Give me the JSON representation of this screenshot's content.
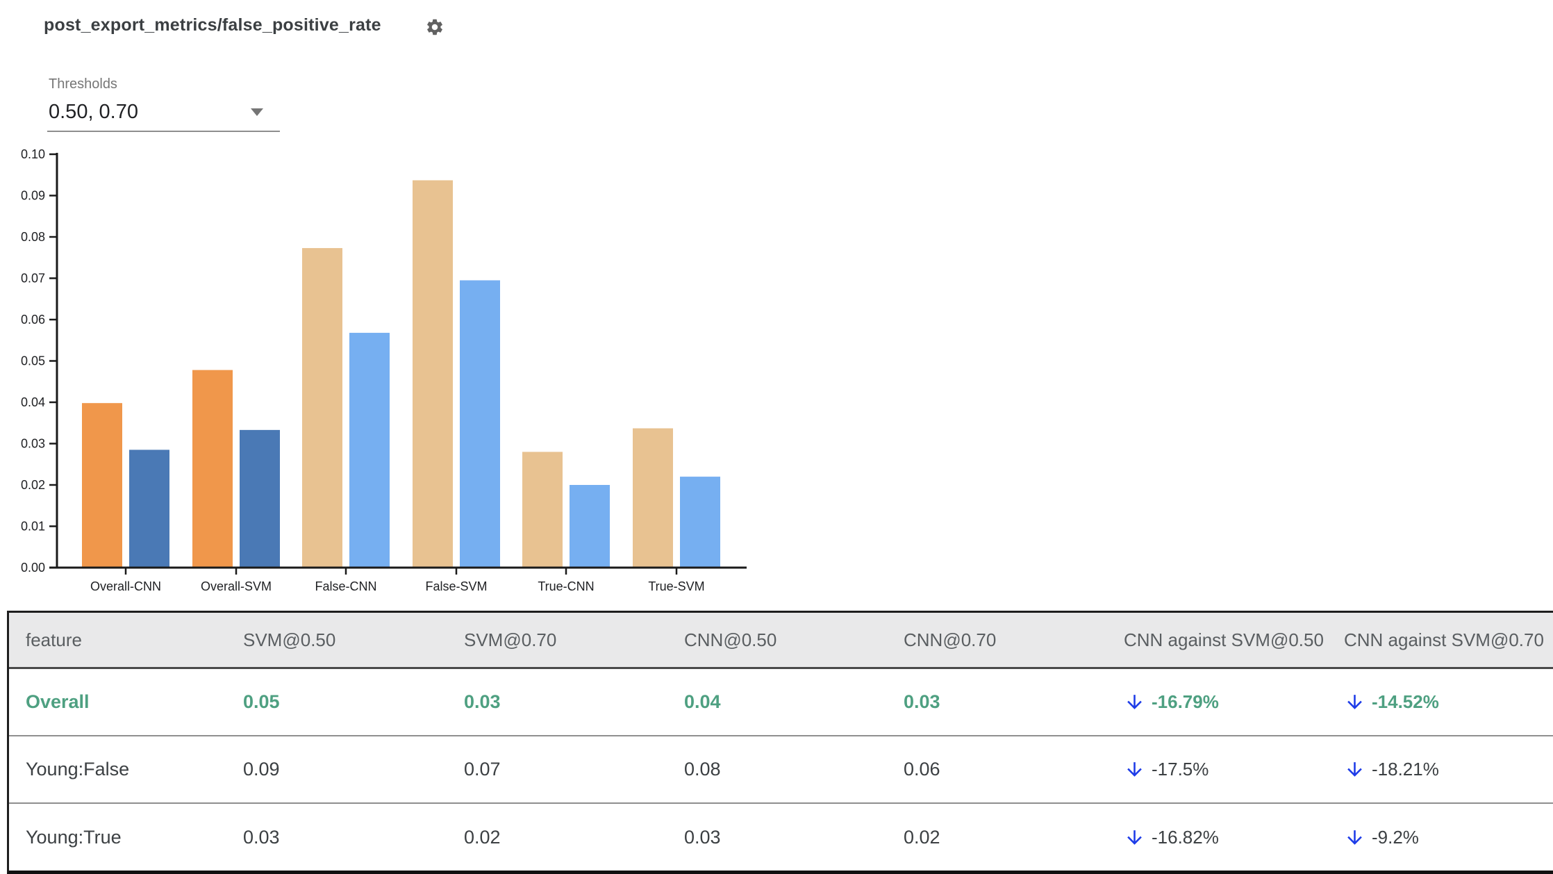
{
  "header": {
    "title": "post_export_metrics/false_positive_rate"
  },
  "threshold_select": {
    "label": "Thresholds",
    "value": "0.50, 0.70"
  },
  "chart_data": {
    "type": "bar",
    "title": "",
    "xlabel": "",
    "ylabel": "",
    "categories": [
      "Overall-CNN",
      "Overall-SVM",
      "False-CNN",
      "False-SVM",
      "True-CNN",
      "True-SVM"
    ],
    "series": [
      {
        "name": "threshold 0.50",
        "values": [
          0.0398,
          0.0478,
          0.0773,
          0.0937,
          0.028,
          0.0337
        ]
      },
      {
        "name": "threshold 0.70",
        "values": [
          0.0285,
          0.0333,
          0.0568,
          0.0695,
          0.02,
          0.022
        ]
      }
    ],
    "highlighted": [
      true,
      true,
      false,
      false,
      false,
      false
    ],
    "ylim": [
      0,
      0.1
    ],
    "ytick_step": 0.01,
    "yticks": [
      "0.00",
      "0.01",
      "0.02",
      "0.03",
      "0.04",
      "0.05",
      "0.06",
      "0.07",
      "0.08",
      "0.09",
      "0.10"
    ],
    "grid": false,
    "legend_position": "none",
    "colors": {
      "series50_highlight": "#F0974B",
      "series70_highlight": "#4A79B5",
      "series50_muted": "#E8C291",
      "series70_muted": "#76AFF1"
    }
  },
  "table": {
    "columns": [
      "feature",
      "SVM@0.50",
      "SVM@0.70",
      "CNN@0.50",
      "CNN@0.70",
      "CNN against SVM@0.50",
      "CNN against SVM@0.70"
    ],
    "rows": [
      {
        "feature": "Overall",
        "svm50": "0.05",
        "svm70": "0.03",
        "cnn50": "0.04",
        "cnn70": "0.03",
        "diff50": "-16.79%",
        "diff70": "-14.52%"
      },
      {
        "feature": "Young:False",
        "svm50": "0.09",
        "svm70": "0.07",
        "cnn50": "0.08",
        "cnn70": "0.06",
        "diff50": "-17.5%",
        "diff70": "-18.21%"
      },
      {
        "feature": "Young:True",
        "svm50": "0.03",
        "svm70": "0.02",
        "cnn50": "0.03",
        "cnn70": "0.02",
        "diff50": "-16.82%",
        "diff70": "-9.2%"
      }
    ]
  },
  "colors": {
    "highlight_green": "#4ea081",
    "arrow_blue": "#1e3ce8",
    "header_bg": "#e9e9ea"
  }
}
